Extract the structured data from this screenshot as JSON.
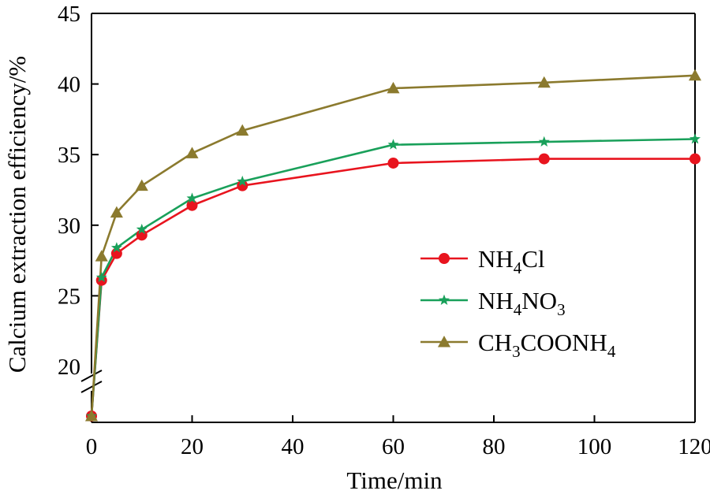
{
  "chart_data": {
    "type": "line",
    "xlabel": "Time/min",
    "ylabel": "Calcium extraction efficiency/%",
    "xlim": [
      0,
      120
    ],
    "ylim": [
      20,
      45
    ],
    "x_ticks": [
      0,
      20,
      40,
      60,
      80,
      100,
      120
    ],
    "y_ticks": [
      20,
      25,
      30,
      35,
      40,
      45
    ],
    "y_axis_break": true,
    "grid": false,
    "legend_position": "center-right",
    "series": [
      {
        "name_parts": [
          "NH",
          "4",
          "Cl"
        ],
        "color": "#e8141e",
        "marker": "circle",
        "x": [
          0,
          2,
          5,
          10,
          20,
          30,
          60,
          90,
          120
        ],
        "y": [
          0,
          26.1,
          28.0,
          29.3,
          31.4,
          32.8,
          34.4,
          34.7,
          34.7
        ]
      },
      {
        "name_parts": [
          "NH",
          "4",
          "NO",
          "3"
        ],
        "color": "#19a05a",
        "marker": "star",
        "x": [
          0,
          2,
          5,
          10,
          20,
          30,
          60,
          90,
          120
        ],
        "y": [
          0,
          26.3,
          28.4,
          29.7,
          31.9,
          33.1,
          35.7,
          35.9,
          36.1
        ]
      },
      {
        "name_parts": [
          "CH",
          "3",
          "COONH",
          "4"
        ],
        "color": "#8b7a2e",
        "marker": "triangle",
        "x": [
          0,
          2,
          5,
          10,
          20,
          30,
          60,
          90,
          120
        ],
        "y": [
          0,
          27.8,
          30.9,
          32.8,
          35.1,
          36.7,
          39.7,
          40.1,
          40.6
        ]
      }
    ]
  }
}
